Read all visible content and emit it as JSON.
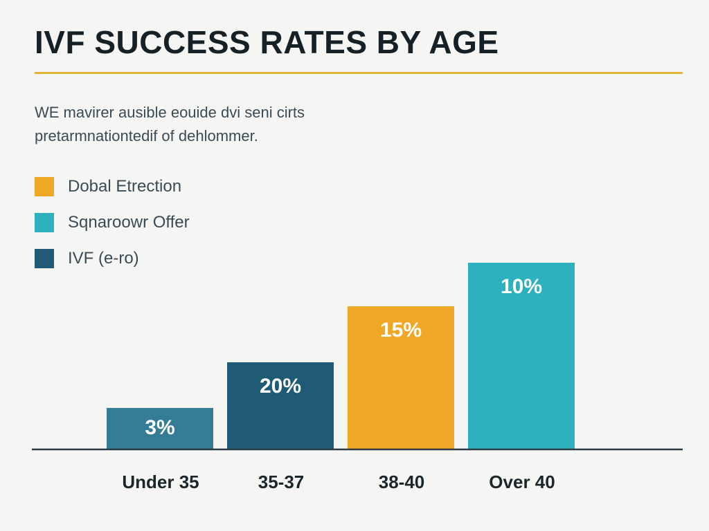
{
  "header": {
    "title": "IVF SUCCESS RATES BY AGE",
    "subtitle_lines": [
      "WE mavirer ausible eouide dvi seni cirts",
      "pretarmnationtedif of dehlommer."
    ]
  },
  "colors": {
    "accent_rule": "#e1b43a",
    "orange": "#f0a726",
    "teal": "#2eb1bf",
    "navy": "#1f5b74",
    "steel": "#357d96",
    "axis": "#2c3b44"
  },
  "legend": [
    {
      "label": "Dobal Etrection",
      "color": "#f0a726"
    },
    {
      "label": "Sqnaroowr Offer",
      "color": "#2eb1bf"
    },
    {
      "label": "IVF (e-ro)",
      "color": "#1f5b74"
    }
  ],
  "chart_data": {
    "type": "bar",
    "title": "IVF SUCCESS RATES BY AGE",
    "categories": [
      "Under 35",
      "35-37",
      "38-40",
      "Over 40"
    ],
    "values": [
      3,
      20,
      15,
      10
    ],
    "data_labels": [
      "3%",
      "20%",
      "15%",
      "10%"
    ],
    "bar_colors": [
      "#357d96",
      "#1f5b74",
      "#f0a726",
      "#2eb1bf"
    ],
    "visual_levels": [
      0.2,
      0.42,
      0.69,
      0.9
    ],
    "xlabel": "",
    "ylabel": "",
    "grid": false,
    "legend_position": "top-left"
  }
}
